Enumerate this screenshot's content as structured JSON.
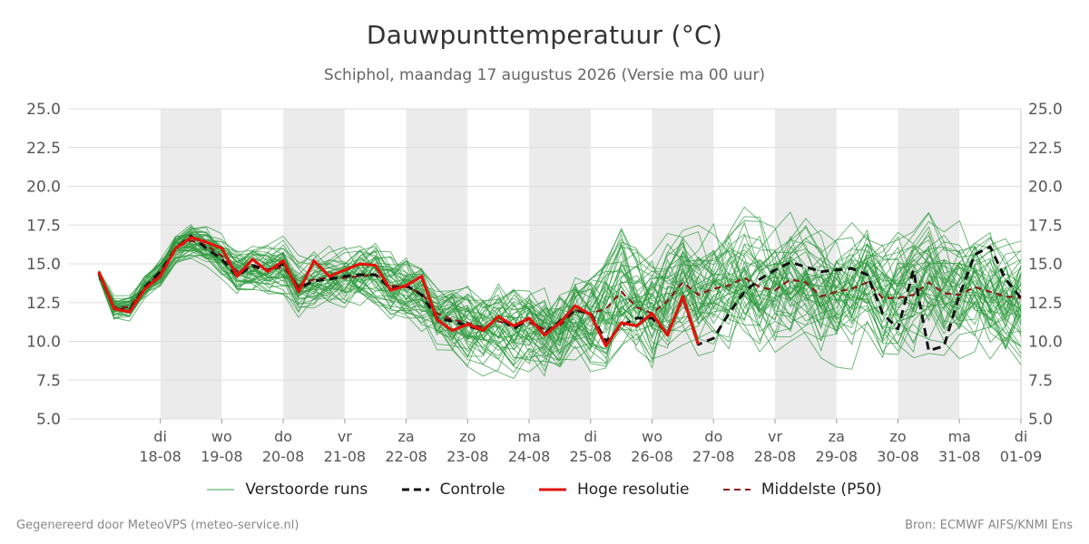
{
  "title": "Dauwpunttemperatuur (°C)",
  "subtitle": "Schiphol, maandag 17 augustus 2026 (Versie ma 00 uur)",
  "footer": {
    "left": "Gegenereerd door MeteoVPS (meteo-service.nl)",
    "right": "Bron: ECMWF AIFS/KNMI Ens"
  },
  "legend": [
    {
      "label": "Verstoorde runs",
      "color": "#3fa34d",
      "style": "thin"
    },
    {
      "label": "Controle",
      "color": "#111111",
      "style": "dashed"
    },
    {
      "label": "Hoge resolutie",
      "color": "#e3120b",
      "style": "solid"
    },
    {
      "label": "Middelste (P50)",
      "color": "#8b1a1a",
      "style": "dashed"
    }
  ],
  "colors": {
    "ensemble": "#2e9a3e",
    "control": "#111111",
    "hires": "#e3120b",
    "median": "#8b1a1a",
    "weekend_band": "#ebebeb",
    "grid": "#dddddd"
  },
  "chart_data": {
    "type": "line",
    "title": "Dauwpunttemperatuur (°C)",
    "ylim": [
      5.0,
      25.0
    ],
    "yticks": [
      "5.0",
      "7.5",
      "10.0",
      "12.5",
      "15.0",
      "17.5",
      "20.0",
      "22.5",
      "25.0"
    ],
    "xlim_days": [
      16.5,
      32
    ],
    "xticks": [
      {
        "day": 18,
        "dow": "di",
        "date": "18-08"
      },
      {
        "day": 19,
        "dow": "wo",
        "date": "19-08"
      },
      {
        "day": 20,
        "dow": "do",
        "date": "20-08"
      },
      {
        "day": 21,
        "dow": "vr",
        "date": "21-08"
      },
      {
        "day": 22,
        "dow": "za",
        "date": "22-08"
      },
      {
        "day": 23,
        "dow": "zo",
        "date": "23-08"
      },
      {
        "day": 24,
        "dow": "ma",
        "date": "24-08"
      },
      {
        "day": 25,
        "dow": "di",
        "date": "25-08"
      },
      {
        "day": 26,
        "dow": "wo",
        "date": "26-08"
      },
      {
        "day": 27,
        "dow": "do",
        "date": "27-08"
      },
      {
        "day": 28,
        "dow": "vr",
        "date": "28-08"
      },
      {
        "day": 29,
        "dow": "za",
        "date": "29-08"
      },
      {
        "day": 30,
        "dow": "zo",
        "date": "30-08"
      },
      {
        "day": 31,
        "dow": "ma",
        "date": "31-08"
      },
      {
        "day": 32,
        "dow": "di",
        "date": "01-09"
      }
    ],
    "shaded_bands": [
      [
        18,
        19
      ],
      [
        20,
        21
      ],
      [
        22,
        23
      ],
      [
        24,
        25
      ],
      [
        26,
        27
      ],
      [
        28,
        29
      ],
      [
        30,
        31
      ]
    ],
    "series": [
      {
        "name": "Controle",
        "x": [
          17.0,
          17.25,
          17.5,
          17.75,
          18.0,
          18.25,
          18.5,
          18.75,
          19.0,
          19.25,
          19.5,
          19.75,
          20.0,
          20.25,
          20.5,
          20.75,
          21.0,
          21.25,
          21.5,
          21.75,
          22.0,
          22.25,
          22.5,
          22.75,
          23.0,
          23.25,
          23.5,
          23.75,
          24.0,
          24.25,
          24.5,
          24.75,
          25.0,
          25.25,
          25.5,
          25.75,
          26.0,
          26.25,
          26.5,
          26.75,
          27.0,
          27.25,
          27.5,
          27.75,
          28.0,
          28.25,
          28.5,
          28.75,
          29.0,
          29.25,
          29.5,
          29.75,
          30.0,
          30.25,
          30.5,
          30.75,
          31.0,
          31.25,
          31.5,
          31.75,
          32.0
        ],
        "values": [
          14.4,
          12.1,
          12.0,
          13.5,
          14.5,
          16.0,
          16.8,
          16.0,
          15.3,
          14.2,
          14.9,
          14.6,
          15.0,
          13.4,
          13.9,
          14.0,
          14.2,
          14.3,
          14.3,
          13.4,
          13.6,
          13.0,
          11.5,
          11.3,
          11.0,
          10.7,
          11.6,
          10.8,
          11.5,
          10.5,
          11.3,
          12.0,
          11.8,
          10.0,
          11.0,
          11.5,
          11.5,
          10.5,
          12.8,
          9.8,
          10.2,
          11.8,
          13.2,
          14.0,
          14.6,
          15.1,
          14.8,
          14.5,
          14.6,
          14.7,
          14.3,
          11.8,
          10.8,
          14.6,
          9.4,
          9.7,
          13.0,
          15.6,
          16.1,
          14.0,
          12.8
        ]
      },
      {
        "name": "Hoge resolutie",
        "x": [
          17.0,
          17.25,
          17.5,
          17.75,
          18.0,
          18.25,
          18.5,
          18.75,
          19.0,
          19.25,
          19.5,
          19.75,
          20.0,
          20.25,
          20.5,
          20.75,
          21.0,
          21.25,
          21.5,
          21.75,
          22.0,
          22.25,
          22.5,
          22.75,
          23.0,
          23.25,
          23.5,
          23.75,
          24.0,
          24.25,
          24.5,
          24.75,
          25.0,
          25.25,
          25.5,
          25.75,
          26.0,
          26.25,
          26.5,
          26.75,
          27.0
        ],
        "values": [
          14.5,
          12.1,
          11.9,
          13.4,
          14.2,
          16.0,
          16.7,
          16.4,
          16.0,
          14.2,
          15.3,
          14.5,
          15.2,
          13.2,
          15.2,
          14.2,
          14.6,
          15.0,
          14.9,
          13.3,
          13.6,
          14.2,
          11.4,
          10.7,
          11.1,
          10.7,
          11.6,
          11.0,
          11.5,
          10.4,
          11.2,
          12.3,
          11.7,
          9.7,
          11.2,
          11.0,
          11.8,
          10.4,
          12.9,
          9.8,
          null
        ]
      },
      {
        "name": "Middelste (P50)",
        "x": [
          17.0,
          17.25,
          17.5,
          17.75,
          18.0,
          18.25,
          18.5,
          18.75,
          19.0,
          19.25,
          19.5,
          19.75,
          20.0,
          20.25,
          20.5,
          20.75,
          21.0,
          21.25,
          21.5,
          21.75,
          22.0,
          22.25,
          22.5,
          22.75,
          23.0,
          23.25,
          23.5,
          23.75,
          24.0,
          24.25,
          24.5,
          24.75,
          25.0,
          25.25,
          25.5,
          25.75,
          26.0,
          26.25,
          26.5,
          26.75,
          27.0,
          27.25,
          27.5,
          27.75,
          28.0,
          28.25,
          28.5,
          28.75,
          29.0,
          29.25,
          29.5,
          29.75,
          30.0,
          30.25,
          30.5,
          30.75,
          31.0,
          31.25,
          31.5,
          31.75,
          32.0
        ],
        "values": [
          14.3,
          12.2,
          12.2,
          13.5,
          14.4,
          16.0,
          16.5,
          16.2,
          15.5,
          14.5,
          14.8,
          14.6,
          14.8,
          13.6,
          14.0,
          14.1,
          14.1,
          14.2,
          14.3,
          13.6,
          13.5,
          13.1,
          11.8,
          11.4,
          11.2,
          10.9,
          11.3,
          11.0,
          11.2,
          10.8,
          11.0,
          12.0,
          11.8,
          12.1,
          13.2,
          12.2,
          11.8,
          12.6,
          13.8,
          13.0,
          13.4,
          13.6,
          14.1,
          13.5,
          13.3,
          14.0,
          13.8,
          12.9,
          13.2,
          13.4,
          13.8,
          12.8,
          12.8,
          13.0,
          13.8,
          13.1,
          13.0,
          13.5,
          13.2,
          12.9,
          12.8
        ]
      }
    ],
    "ensemble": {
      "name": "Verstoorde runs",
      "members": 50,
      "x_start": 17.0,
      "x_step": 0.25,
      "mean": [
        14.3,
        12.2,
        12.2,
        13.5,
        14.4,
        16.0,
        16.5,
        16.2,
        15.5,
        14.5,
        14.8,
        14.6,
        14.8,
        13.6,
        14.0,
        14.1,
        14.1,
        14.2,
        14.3,
        13.6,
        13.5,
        13.1,
        11.8,
        11.4,
        11.2,
        10.9,
        11.3,
        11.0,
        11.2,
        10.8,
        11.0,
        12.0,
        11.8,
        12.1,
        13.2,
        12.2,
        11.8,
        12.6,
        13.8,
        13.0,
        13.4,
        13.6,
        14.1,
        13.5,
        13.3,
        14.0,
        13.8,
        12.9,
        13.2,
        13.4,
        13.8,
        12.8,
        12.8,
        13.0,
        13.8,
        13.1,
        13.0,
        13.5,
        13.2,
        12.9,
        12.8
      ],
      "spread": [
        0.3,
        0.6,
        0.6,
        0.6,
        0.7,
        0.7,
        0.8,
        0.9,
        1.0,
        1.1,
        1.1,
        1.2,
        1.3,
        1.3,
        1.3,
        1.4,
        1.4,
        1.5,
        1.5,
        1.6,
        1.6,
        1.7,
        1.8,
        1.9,
        2.0,
        2.0,
        2.1,
        2.2,
        2.3,
        2.4,
        2.5,
        2.6,
        2.7,
        2.8,
        2.9,
        2.9,
        3.0,
        3.0,
        3.0,
        3.0,
        3.0,
        3.0,
        3.0,
        3.0,
        3.0,
        3.0,
        3.0,
        3.0,
        3.0,
        3.0,
        3.0,
        3.0,
        3.0,
        3.0,
        3.0,
        3.0,
        3.0,
        3.0,
        3.0,
        3.0,
        3.0
      ]
    }
  }
}
